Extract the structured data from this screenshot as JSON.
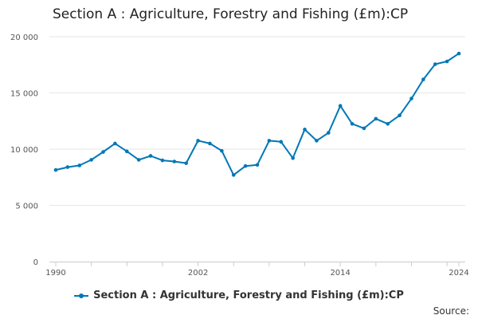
{
  "chart_data": {
    "type": "line",
    "title": "Section A : Agriculture, Forestry and Fishing (£m):CP",
    "xlabel": "",
    "ylabel": "",
    "ylim": [
      0,
      20000
    ],
    "xlim": [
      1990,
      2024
    ],
    "yticks": [
      0,
      5000,
      10000,
      15000,
      20000
    ],
    "ytick_labels": [
      "0",
      "5 000",
      "10 000",
      "15 000",
      "20 000"
    ],
    "xtick_labels": [
      "1990",
      "2002",
      "2014",
      "2024"
    ],
    "grid": true,
    "legend_position": "bottom",
    "color": "#0077b6",
    "series": [
      {
        "name": "Section A : Agriculture, Forestry and Fishing (£m):CP",
        "x": [
          1990,
          1991,
          1992,
          1993,
          1994,
          1995,
          1996,
          1997,
          1998,
          1999,
          2000,
          2001,
          2002,
          2003,
          2004,
          2005,
          2006,
          2007,
          2008,
          2009,
          2010,
          2011,
          2012,
          2013,
          2014,
          2015,
          2016,
          2017,
          2018,
          2019,
          2020,
          2021,
          2022,
          2023,
          2024
        ],
        "values": [
          8150,
          8400,
          8550,
          9050,
          9750,
          10500,
          9800,
          9050,
          9400,
          9000,
          8900,
          8750,
          10750,
          10500,
          9850,
          7700,
          8500,
          8600,
          10750,
          10650,
          9200,
          11750,
          10750,
          11450,
          13850,
          12250,
          11850,
          12700,
          12250,
          13000,
          14500,
          16200,
          17550,
          17800,
          18500
        ]
      }
    ]
  },
  "legend": {
    "label": "Section A : Agriculture, Forestry and Fishing (£m):CP"
  },
  "source": {
    "label": "Source:"
  }
}
